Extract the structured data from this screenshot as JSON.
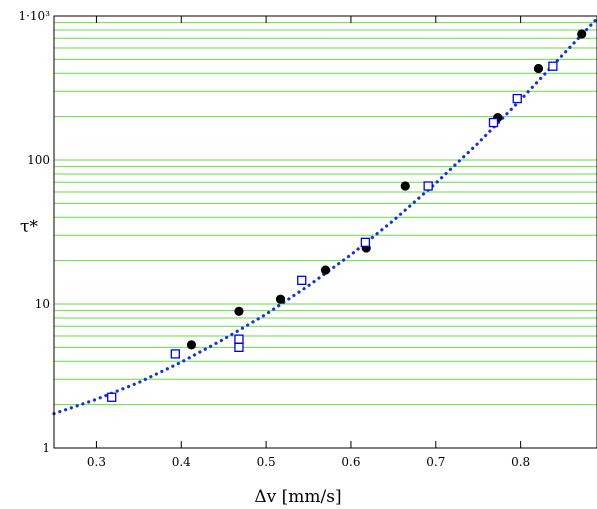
{
  "chart_data": {
    "type": "scatter",
    "title": "",
    "xlabel": "Δv   [mm/s]",
    "ylabel": "τ*",
    "xlim": [
      0.25,
      0.89
    ],
    "ylim": [
      1,
      1000
    ],
    "y_scale": "log",
    "grid": "horizontal (log minor gridlines)",
    "x_ticks": [
      {
        "value": 0.3,
        "label": "0.3"
      },
      {
        "value": 0.4,
        "label": "0.4"
      },
      {
        "value": 0.5,
        "label": "0.5"
      },
      {
        "value": 0.6,
        "label": "0.6"
      },
      {
        "value": 0.7,
        "label": "0.7"
      },
      {
        "value": 0.8,
        "label": "0.8"
      }
    ],
    "y_ticks": [
      {
        "value": 1,
        "label": "1"
      },
      {
        "value": 10,
        "label": "10"
      },
      {
        "value": 100,
        "label": "100"
      },
      {
        "value": 1000,
        "label": "1·10³"
      }
    ],
    "series": [
      {
        "marker": "filled-circle",
        "color": "#000000",
        "points": [
          {
            "x": 0.412,
            "y": 5.2
          },
          {
            "x": 0.468,
            "y": 8.9
          },
          {
            "x": 0.517,
            "y": 10.8
          },
          {
            "x": 0.57,
            "y": 17.2
          },
          {
            "x": 0.618,
            "y": 24.5
          },
          {
            "x": 0.664,
            "y": 66
          },
          {
            "x": 0.773,
            "y": 197
          },
          {
            "x": 0.821,
            "y": 432
          },
          {
            "x": 0.872,
            "y": 750
          }
        ]
      },
      {
        "marker": "open-square",
        "color": "#0000ee",
        "points": [
          {
            "x": 0.318,
            "y": 2.25
          },
          {
            "x": 0.393,
            "y": 4.5
          },
          {
            "x": 0.468,
            "y": 5.7
          },
          {
            "x": 0.468,
            "y": 5.0
          },
          {
            "x": 0.542,
            "y": 14.6
          },
          {
            "x": 0.617,
            "y": 26.8
          },
          {
            "x": 0.691,
            "y": 66
          },
          {
            "x": 0.768,
            "y": 182
          },
          {
            "x": 0.796,
            "y": 267
          },
          {
            "x": 0.838,
            "y": 448
          }
        ]
      },
      {
        "kind": "fit-line",
        "style": "dotted",
        "color": "#1133dd",
        "points": [
          {
            "x": 0.25,
            "y": 1.73
          },
          {
            "x": 0.3,
            "y": 2.18
          },
          {
            "x": 0.35,
            "y": 2.85
          },
          {
            "x": 0.4,
            "y": 3.95
          },
          {
            "x": 0.45,
            "y": 5.7
          },
          {
            "x": 0.5,
            "y": 8.5
          },
          {
            "x": 0.55,
            "y": 13.4
          },
          {
            "x": 0.6,
            "y": 22
          },
          {
            "x": 0.65,
            "y": 38
          },
          {
            "x": 0.7,
            "y": 69
          },
          {
            "x": 0.75,
            "y": 131
          },
          {
            "x": 0.8,
            "y": 262
          },
          {
            "x": 0.85,
            "y": 540
          },
          {
            "x": 0.89,
            "y": 960
          }
        ]
      }
    ]
  },
  "colors": {
    "minor_grid": "#66dd44",
    "major_grid": "#000000",
    "frame": "#000000"
  }
}
